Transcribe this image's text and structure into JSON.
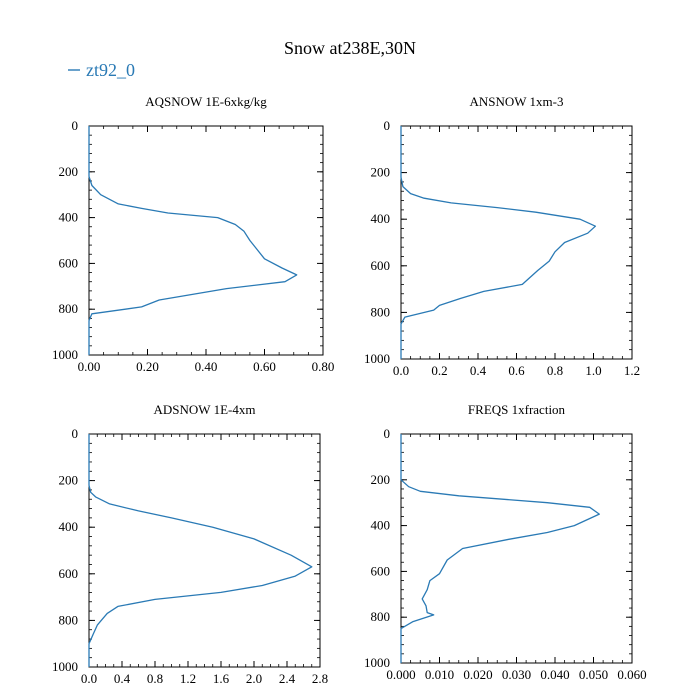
{
  "figure": {
    "title": "Snow at238E,30N",
    "legend": {
      "label": "zt92_0",
      "color": "#2a7ab5"
    }
  },
  "chart_data": [
    {
      "type": "line",
      "title": "AQSNOW  1E-6xkg/kg",
      "xlim": [
        0,
        0.8
      ],
      "xticks": [
        0,
        0.2,
        0.4,
        0.6,
        0.8
      ],
      "xtick_labels": [
        "0.00",
        "0.20",
        "0.40",
        "0.60",
        "0.80"
      ],
      "ylim": [
        0,
        1000
      ],
      "yticks": [
        0,
        200,
        400,
        600,
        800,
        1000
      ],
      "ytick_labels": [
        "0",
        "200",
        "400",
        "600",
        "800",
        "1000"
      ],
      "y_inverted": true,
      "series": [
        {
          "name": "zt92_0",
          "x": [
            0,
            0,
            0.01,
            0.04,
            0.1,
            0.18,
            0.27,
            0.44,
            0.5,
            0.53,
            0.55,
            0.6,
            0.66,
            0.71,
            0.67,
            0.47,
            0.24,
            0.18,
            0.01,
            0,
            0
          ],
          "y": [
            0,
            220,
            260,
            300,
            340,
            360,
            380,
            400,
            430,
            460,
            500,
            580,
            620,
            650,
            680,
            710,
            760,
            790,
            820,
            850,
            1000
          ]
        }
      ]
    },
    {
      "type": "line",
      "title": "ANSNOW  1xm-3",
      "xlim": [
        0,
        1.2
      ],
      "xticks": [
        0,
        0.2,
        0.4,
        0.6,
        0.8,
        1.0,
        1.2
      ],
      "xtick_labels": [
        "0.0",
        "0.2",
        "0.4",
        "0.6",
        "0.8",
        "1.0",
        "1.2"
      ],
      "ylim": [
        0,
        1000
      ],
      "yticks": [
        0,
        200,
        400,
        600,
        800,
        1000
      ],
      "ytick_labels": [
        "0",
        "200",
        "400",
        "600",
        "800",
        "1000"
      ],
      "y_inverted": true,
      "series": [
        {
          "name": "zt92_0",
          "x": [
            0,
            0,
            0.01,
            0.05,
            0.12,
            0.26,
            0.5,
            0.7,
            0.93,
            1.01,
            0.97,
            0.85,
            0.8,
            0.77,
            0.71,
            0.63,
            0.43,
            0.31,
            0.2,
            0.17,
            0.02,
            0,
            0
          ],
          "y": [
            0,
            220,
            260,
            290,
            310,
            330,
            350,
            370,
            400,
            430,
            460,
            500,
            540,
            580,
            620,
            680,
            710,
            740,
            770,
            790,
            820,
            850,
            1000
          ]
        }
      ]
    },
    {
      "type": "line",
      "title": "ADSNOW  1E-4xm",
      "xlim": [
        0,
        2.8
      ],
      "xticks": [
        0,
        0.4,
        0.8,
        1.2,
        1.6,
        2.0,
        2.4,
        2.8
      ],
      "xtick_labels": [
        "0.0",
        "0.4",
        "0.8",
        "1.2",
        "1.6",
        "2.0",
        "2.4",
        "2.8"
      ],
      "ylim": [
        0,
        1000
      ],
      "yticks": [
        0,
        200,
        400,
        600,
        800,
        1000
      ],
      "ytick_labels": [
        "0",
        "200",
        "400",
        "600",
        "800",
        "1000"
      ],
      "y_inverted": true,
      "series": [
        {
          "name": "zt92_0",
          "x": [
            0,
            0,
            0.02,
            0.08,
            0.25,
            0.6,
            1.0,
            1.5,
            2.0,
            2.45,
            2.7,
            2.5,
            2.1,
            1.6,
            0.8,
            0.35,
            0.22,
            0.1,
            0.05,
            0,
            0
          ],
          "y": [
            0,
            220,
            250,
            270,
            300,
            330,
            360,
            400,
            450,
            520,
            570,
            610,
            650,
            680,
            710,
            740,
            770,
            820,
            860,
            900,
            1000
          ]
        }
      ]
    },
    {
      "type": "line",
      "title": "FREQS  1xfraction",
      "xlim": [
        0,
        0.06
      ],
      "xticks": [
        0,
        0.01,
        0.02,
        0.03,
        0.04,
        0.05,
        0.06
      ],
      "xtick_labels": [
        "0.000",
        "0.010",
        "0.020",
        "0.030",
        "0.040",
        "0.050",
        "0.060"
      ],
      "ylim": [
        0,
        1000
      ],
      "yticks": [
        0,
        200,
        400,
        600,
        800,
        1000
      ],
      "ytick_labels": [
        "0",
        "200",
        "400",
        "600",
        "800",
        "1000"
      ],
      "y_inverted": true,
      "series": [
        {
          "name": "zt92_0",
          "x": [
            0,
            0,
            0.002,
            0.005,
            0.015,
            0.038,
            0.049,
            0.0515,
            0.045,
            0.038,
            0.028,
            0.016,
            0.012,
            0.01,
            0.0075,
            0.0068,
            0.0055,
            0.0065,
            0.0068,
            0.0085,
            0.003,
            0,
            0
          ],
          "y": [
            0,
            200,
            230,
            250,
            270,
            300,
            320,
            350,
            400,
            430,
            460,
            500,
            550,
            610,
            640,
            680,
            720,
            750,
            780,
            790,
            820,
            850,
            1000
          ]
        }
      ]
    }
  ]
}
